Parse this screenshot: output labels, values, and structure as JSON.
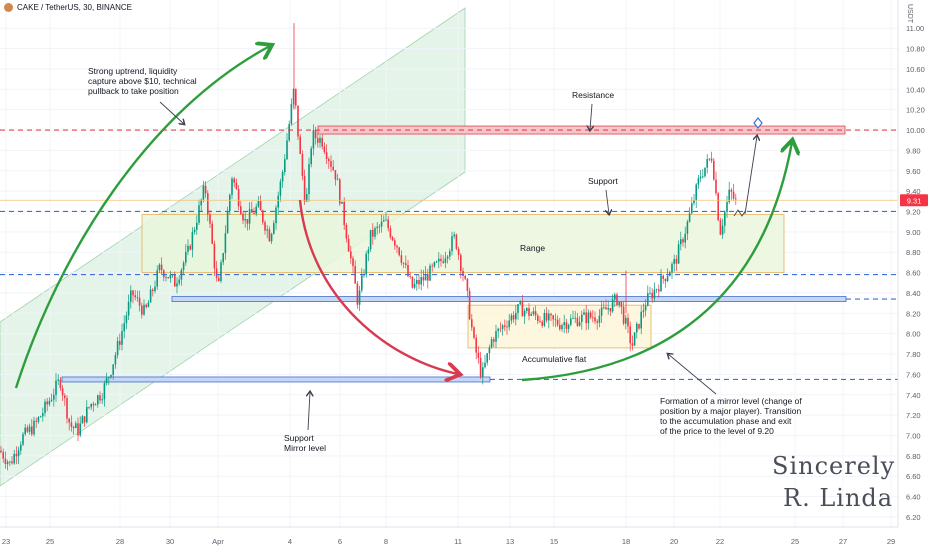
{
  "header": {
    "title": "CAKE / TetherUS, 30, BINANCE"
  },
  "price_axis": {
    "unit": "USDT",
    "current_price_label": "9.31"
  },
  "annotations": {
    "uptrend": "Strong uptrend, liquidity\ncapture above $10, technical\npullback to take position",
    "resistance": "Resistance",
    "support_top": "Support",
    "range": "Range",
    "flat": "Accumulative flat",
    "mirror_support": "Support\nMirror level",
    "formation": "Formation of a mirror level (change of\nposition by a major player). Transition\nto the accumulation phase and exit\nof the price to the level of 9.20"
  },
  "signature": {
    "line1": "Sincerely",
    "line2": "R. Linda"
  },
  "colors": {
    "up": "#089981",
    "down": "#f23645",
    "resistance": "#e0424e",
    "support": "#3f6fd1",
    "range_fill": "#eaf6dc",
    "range_border": "#e3b25b",
    "channel": "#d9f0df",
    "arrow_green": "#2e9e3d",
    "arrow_red": "#d83a50"
  },
  "chart_data": {
    "type": "candlestick",
    "x_ticks": [
      "23",
      "25",
      "28",
      "30",
      "Apr",
      "4",
      "6",
      "8",
      "11",
      "13",
      "15",
      "18",
      "20",
      "22",
      "25",
      "27",
      "29"
    ],
    "y_ticks": [
      6.2,
      6.4,
      6.6,
      6.8,
      7.0,
      7.2,
      7.4,
      7.6,
      7.8,
      8.0,
      8.2,
      8.4,
      8.6,
      8.8,
      9.0,
      9.2,
      9.4,
      9.6,
      9.8,
      10.0,
      10.2,
      10.4,
      10.6,
      10.8,
      11.0
    ],
    "ylim": [
      6.16,
      11.12
    ],
    "levels": {
      "resistance": 10.0,
      "support": 9.2,
      "range_low": 8.58,
      "mid_support": 8.34,
      "mirror": 7.55
    },
    "range_zone": [
      8.6,
      9.17
    ],
    "flat_zone": [
      7.86,
      8.28
    ],
    "current_price": 9.31,
    "path": [
      [
        0,
        6.85
      ],
      [
        10,
        6.72
      ],
      [
        22,
        6.98
      ],
      [
        35,
        7.1
      ],
      [
        48,
        7.32
      ],
      [
        60,
        7.55
      ],
      [
        70,
        7.1
      ],
      [
        78,
        7.05
      ],
      [
        90,
        7.3
      ],
      [
        102,
        7.42
      ],
      [
        110,
        7.62
      ],
      [
        120,
        7.95
      ],
      [
        132,
        8.4
      ],
      [
        145,
        8.2
      ],
      [
        160,
        8.65
      ],
      [
        175,
        8.5
      ],
      [
        188,
        8.8
      ],
      [
        205,
        9.45
      ],
      [
        218,
        8.4
      ],
      [
        232,
        9.55
      ],
      [
        245,
        9.1
      ],
      [
        258,
        9.25
      ],
      [
        270,
        8.95
      ],
      [
        282,
        9.55
      ],
      [
        294,
        10.4
      ],
      [
        300,
        9.75
      ],
      [
        306,
        9.25
      ],
      [
        312,
        9.95
      ],
      [
        322,
        9.9
      ],
      [
        336,
        9.55
      ],
      [
        348,
        8.9
      ],
      [
        358,
        8.3
      ],
      [
        370,
        8.95
      ],
      [
        385,
        9.1
      ],
      [
        398,
        8.85
      ],
      [
        412,
        8.45
      ],
      [
        425,
        8.55
      ],
      [
        440,
        8.7
      ],
      [
        455,
        8.95
      ],
      [
        466,
        8.45
      ],
      [
        474,
        7.9
      ],
      [
        482,
        7.58
      ],
      [
        492,
        7.95
      ],
      [
        505,
        8.1
      ],
      [
        520,
        8.25
      ],
      [
        540,
        8.15
      ],
      [
        560,
        8.1
      ],
      [
        580,
        8.15
      ],
      [
        600,
        8.18
      ],
      [
        618,
        8.35
      ],
      [
        632,
        7.88
      ],
      [
        645,
        8.3
      ],
      [
        660,
        8.5
      ],
      [
        675,
        8.7
      ],
      [
        688,
        9.1
      ],
      [
        700,
        9.55
      ],
      [
        712,
        9.75
      ],
      [
        720,
        9.0
      ],
      [
        730,
        9.4
      ],
      [
        738,
        9.25
      ]
    ]
  }
}
